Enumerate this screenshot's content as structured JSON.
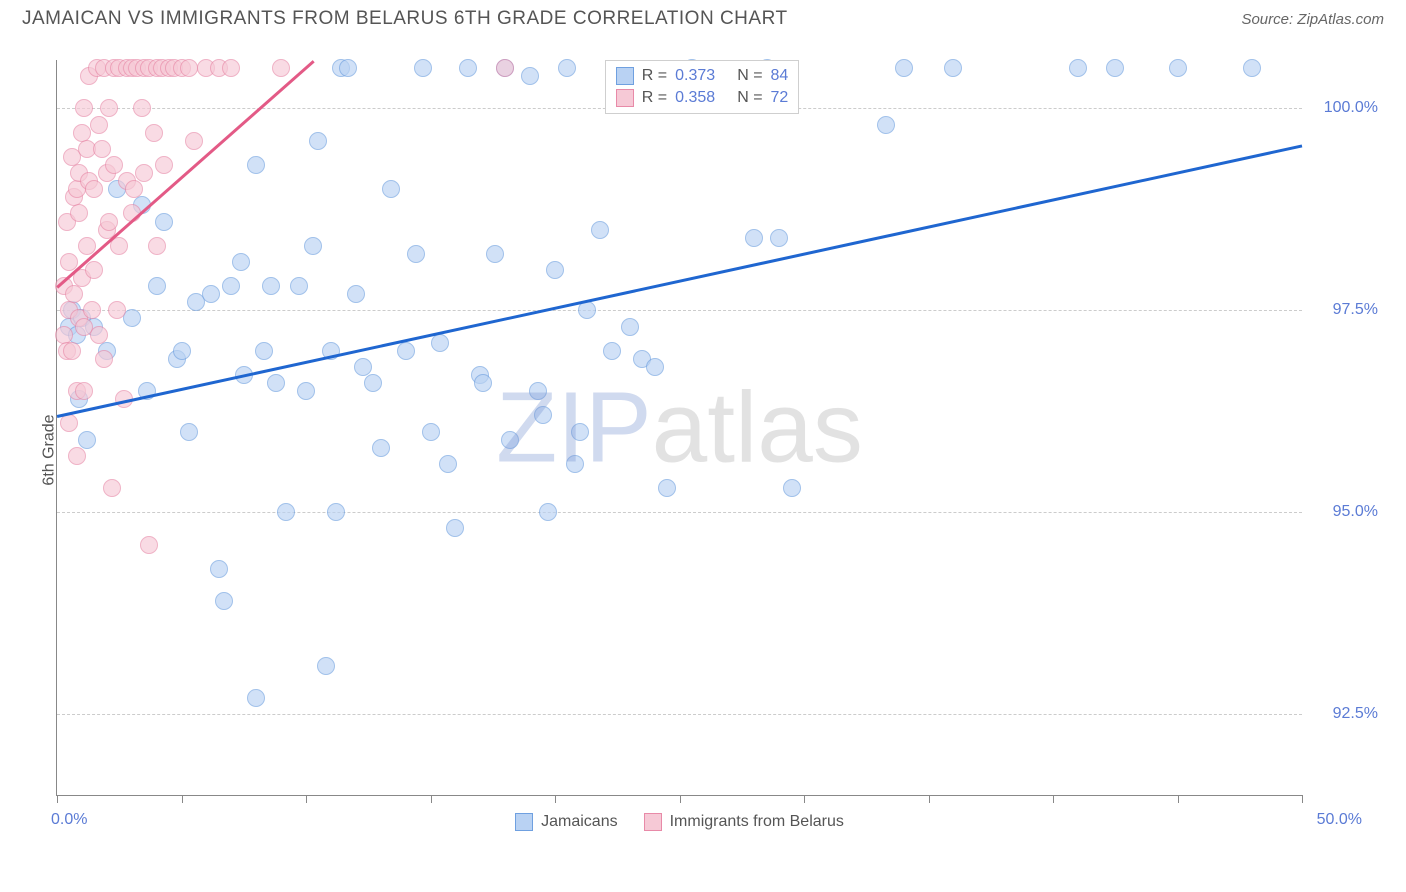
{
  "title": "JAMAICAN VS IMMIGRANTS FROM BELARUS 6TH GRADE CORRELATION CHART",
  "source": "Source: ZipAtlas.com",
  "ylabel": "6th Grade",
  "watermark_a": "ZIP",
  "watermark_b": "atlas",
  "chart": {
    "type": "scatter",
    "background_color": "#ffffff",
    "grid_color": "#cccccc",
    "axis_color": "#888888",
    "xlim": [
      0,
      50
    ],
    "ylim": [
      91.5,
      100.6
    ],
    "x_endpoints": {
      "min_label": "0.0%",
      "max_label": "50.0%"
    },
    "xticks": [
      0,
      5,
      10,
      15,
      20,
      25,
      30,
      35,
      40,
      45,
      50
    ],
    "yticks": [
      {
        "v": 92.5,
        "label": "92.5%"
      },
      {
        "v": 95.0,
        "label": "95.0%"
      },
      {
        "v": 97.5,
        "label": "97.5%"
      },
      {
        "v": 100.0,
        "label": "100.0%"
      }
    ],
    "marker_radius": 9,
    "series": [
      {
        "key": "jamaicans",
        "label": "Jamaicans",
        "fill": "#b9d2f3",
        "stroke": "#6fa0e0",
        "line_color": "#1f66d0",
        "R": "0.373",
        "N": "84",
        "trend": {
          "x1": 0,
          "y1": 96.2,
          "x2": 50,
          "y2": 99.55
        },
        "points": [
          [
            0.5,
            97.3
          ],
          [
            0.6,
            97.5
          ],
          [
            0.8,
            97.2
          ],
          [
            0.9,
            96.4
          ],
          [
            1.0,
            97.4
          ],
          [
            1.2,
            95.9
          ],
          [
            1.5,
            97.3
          ],
          [
            2.0,
            97.0
          ],
          [
            2.4,
            99.0
          ],
          [
            3.0,
            97.4
          ],
          [
            3.4,
            98.8
          ],
          [
            3.6,
            96.5
          ],
          [
            4.0,
            97.8
          ],
          [
            4.3,
            98.6
          ],
          [
            4.8,
            96.9
          ],
          [
            5.0,
            97.0
          ],
          [
            5.3,
            96.0
          ],
          [
            5.6,
            97.6
          ],
          [
            6.2,
            97.7
          ],
          [
            6.5,
            94.3
          ],
          [
            6.7,
            93.9
          ],
          [
            7.0,
            97.8
          ],
          [
            7.4,
            98.1
          ],
          [
            7.5,
            96.7
          ],
          [
            8.0,
            99.3
          ],
          [
            8.0,
            92.7
          ],
          [
            8.3,
            97.0
          ],
          [
            8.6,
            97.8
          ],
          [
            8.8,
            96.6
          ],
          [
            9.2,
            95.0
          ],
          [
            9.7,
            97.8
          ],
          [
            10.0,
            96.5
          ],
          [
            10.3,
            98.3
          ],
          [
            10.5,
            99.6
          ],
          [
            10.8,
            93.1
          ],
          [
            11.0,
            97.0
          ],
          [
            11.2,
            95.0
          ],
          [
            11.4,
            100.5
          ],
          [
            11.7,
            100.5
          ],
          [
            12.0,
            97.7
          ],
          [
            12.3,
            96.8
          ],
          [
            12.7,
            96.6
          ],
          [
            13.0,
            95.8
          ],
          [
            13.4,
            99.0
          ],
          [
            14.0,
            97.0
          ],
          [
            14.4,
            98.2
          ],
          [
            14.7,
            100.5
          ],
          [
            15.0,
            96.0
          ],
          [
            15.4,
            97.1
          ],
          [
            15.7,
            95.6
          ],
          [
            16.0,
            94.8
          ],
          [
            16.5,
            100.5
          ],
          [
            17.0,
            96.7
          ],
          [
            17.1,
            96.6
          ],
          [
            17.6,
            98.2
          ],
          [
            18.0,
            100.5
          ],
          [
            18.2,
            95.9
          ],
          [
            19.0,
            100.4
          ],
          [
            19.3,
            96.5
          ],
          [
            19.5,
            96.2
          ],
          [
            19.7,
            95.0
          ],
          [
            20.0,
            98.0
          ],
          [
            20.5,
            100.5
          ],
          [
            20.8,
            95.6
          ],
          [
            21.0,
            96.0
          ],
          [
            21.3,
            97.5
          ],
          [
            21.8,
            98.5
          ],
          [
            22.3,
            97.0
          ],
          [
            23.0,
            97.3
          ],
          [
            23.5,
            96.9
          ],
          [
            24.0,
            96.8
          ],
          [
            24.5,
            95.3
          ],
          [
            25.5,
            100.5
          ],
          [
            28.0,
            98.4
          ],
          [
            28.5,
            100.5
          ],
          [
            29.0,
            98.4
          ],
          [
            29.5,
            95.3
          ],
          [
            33.3,
            99.8
          ],
          [
            34.0,
            100.5
          ],
          [
            36.0,
            100.5
          ],
          [
            41.0,
            100.5
          ],
          [
            42.5,
            100.5
          ],
          [
            45.0,
            100.5
          ],
          [
            48.0,
            100.5
          ]
        ]
      },
      {
        "key": "belarus",
        "label": "Immigrants from Belarus",
        "fill": "#f6c9d6",
        "stroke": "#e88aa8",
        "line_color": "#e35a86",
        "R": "0.358",
        "N": "72",
        "trend": {
          "x1": 0,
          "y1": 97.8,
          "x2": 10.3,
          "y2": 100.6
        },
        "points": [
          [
            0.3,
            97.8
          ],
          [
            0.3,
            97.2
          ],
          [
            0.4,
            98.6
          ],
          [
            0.4,
            97.0
          ],
          [
            0.5,
            98.1
          ],
          [
            0.5,
            96.1
          ],
          [
            0.5,
            97.5
          ],
          [
            0.6,
            99.4
          ],
          [
            0.6,
            97.0
          ],
          [
            0.7,
            97.7
          ],
          [
            0.7,
            98.9
          ],
          [
            0.8,
            99.0
          ],
          [
            0.8,
            96.5
          ],
          [
            0.8,
            95.7
          ],
          [
            0.9,
            99.2
          ],
          [
            0.9,
            97.4
          ],
          [
            0.9,
            98.7
          ],
          [
            1.0,
            97.9
          ],
          [
            1.0,
            99.7
          ],
          [
            1.1,
            100.0
          ],
          [
            1.1,
            97.3
          ],
          [
            1.1,
            96.5
          ],
          [
            1.2,
            99.5
          ],
          [
            1.2,
            98.3
          ],
          [
            1.3,
            99.1
          ],
          [
            1.3,
            100.4
          ],
          [
            1.4,
            97.5
          ],
          [
            1.5,
            99.0
          ],
          [
            1.5,
            98.0
          ],
          [
            1.6,
            100.5
          ],
          [
            1.7,
            97.2
          ],
          [
            1.7,
            99.8
          ],
          [
            1.8,
            99.5
          ],
          [
            1.9,
            96.9
          ],
          [
            1.9,
            100.5
          ],
          [
            2.0,
            98.5
          ],
          [
            2.0,
            99.2
          ],
          [
            2.1,
            100.0
          ],
          [
            2.1,
            98.6
          ],
          [
            2.2,
            95.3
          ],
          [
            2.3,
            100.5
          ],
          [
            2.3,
            99.3
          ],
          [
            2.4,
            97.5
          ],
          [
            2.5,
            100.5
          ],
          [
            2.5,
            98.3
          ],
          [
            2.7,
            96.4
          ],
          [
            2.8,
            100.5
          ],
          [
            2.8,
            99.1
          ],
          [
            3.0,
            100.5
          ],
          [
            3.0,
            98.7
          ],
          [
            3.1,
            99.0
          ],
          [
            3.2,
            100.5
          ],
          [
            3.4,
            100.0
          ],
          [
            3.5,
            99.2
          ],
          [
            3.5,
            100.5
          ],
          [
            3.7,
            94.6
          ],
          [
            3.7,
            100.5
          ],
          [
            3.9,
            99.7
          ],
          [
            4.0,
            98.3
          ],
          [
            4.0,
            100.5
          ],
          [
            4.2,
            100.5
          ],
          [
            4.3,
            99.3
          ],
          [
            4.5,
            100.5
          ],
          [
            4.7,
            100.5
          ],
          [
            5.0,
            100.5
          ],
          [
            5.3,
            100.5
          ],
          [
            5.5,
            99.6
          ],
          [
            6.0,
            100.5
          ],
          [
            6.5,
            100.5
          ],
          [
            7.0,
            100.5
          ],
          [
            9.0,
            100.5
          ],
          [
            18.0,
            100.5
          ]
        ]
      }
    ]
  }
}
